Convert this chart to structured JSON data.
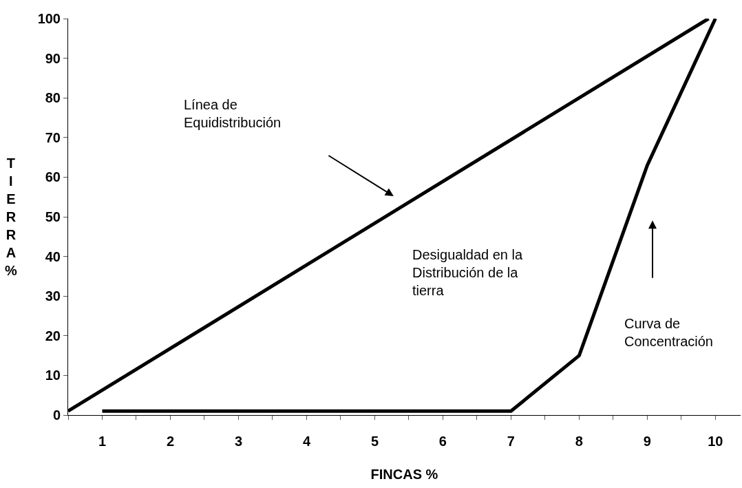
{
  "chart_data": {
    "type": "line",
    "xlabel": "FINCAS %",
    "ylabel": "TIERRA %",
    "xlim": [
      0.5,
      10.37
    ],
    "xticks": [
      {
        "value": 0.5,
        "label": null
      },
      1,
      {
        "value": 1.5,
        "label": null
      },
      2,
      {
        "value": 2.5,
        "label": null
      },
      3,
      {
        "value": 3.5,
        "label": null
      },
      4,
      {
        "value": 4.5,
        "label": null
      },
      5,
      {
        "value": 5.5,
        "label": null
      },
      6,
      {
        "value": 6.5,
        "label": null
      },
      7,
      {
        "value": 7.5,
        "label": null
      },
      8,
      {
        "value": 8.5,
        "label": null
      },
      9,
      {
        "value": 9.5,
        "label": null
      },
      10
    ],
    "ylim": [
      0,
      100
    ],
    "yticks": [
      0,
      10,
      20,
      30,
      40,
      50,
      60,
      70,
      80,
      90,
      100
    ],
    "grid": false,
    "series": [
      {
        "color": "#000000",
        "x": [
          0.5,
          9.9
        ],
        "values": [
          1,
          100
        ]
      },
      {
        "color": "#000000",
        "x": [
          1,
          7,
          8,
          9,
          10
        ],
        "values": [
          1,
          1,
          15,
          63,
          100
        ]
      }
    ],
    "annotations": [
      "Línea de\nEquidistribución",
      "Desigualdad en la\nDistribución de la\ntierra",
      "Curva de\nConcentración"
    ]
  }
}
